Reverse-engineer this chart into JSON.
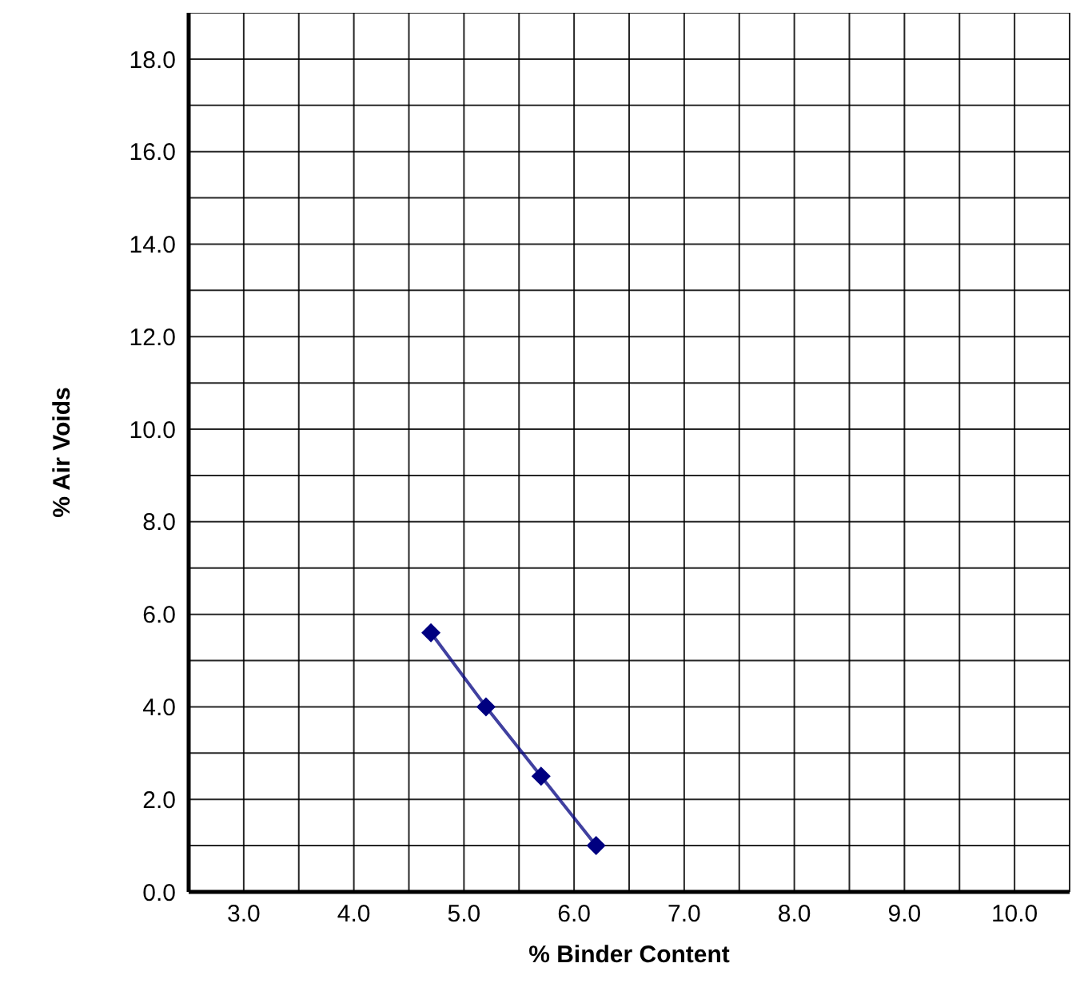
{
  "chart_data": {
    "type": "line",
    "xlabel": "% Binder Content",
    "ylabel": "% Air Voids",
    "x": [
      4.7,
      5.2,
      5.7,
      6.2
    ],
    "series": [
      {
        "color": "#000080",
        "values": [
          5.6,
          4.0,
          2.5,
          1.0
        ]
      }
    ],
    "xlim": [
      2.5,
      10.5
    ],
    "xticks": [
      {
        "value": 3.0,
        "label": "3.0"
      },
      {
        "value": 3.5,
        "label": null
      },
      {
        "value": 4.0,
        "label": "4.0"
      },
      {
        "value": 4.5,
        "label": null
      },
      {
        "value": 5.0,
        "label": "5.0"
      },
      {
        "value": 5.5,
        "label": null
      },
      {
        "value": 6.0,
        "label": "6.0"
      },
      {
        "value": 6.5,
        "label": null
      },
      {
        "value": 7.0,
        "label": "7.0"
      },
      {
        "value": 7.5,
        "label": null
      },
      {
        "value": 8.0,
        "label": "8.0"
      },
      {
        "value": 8.5,
        "label": null
      },
      {
        "value": 9.0,
        "label": "9.0"
      },
      {
        "value": 9.5,
        "label": null
      },
      {
        "value": 10.0,
        "label": "10.0"
      }
    ],
    "ylim": [
      0,
      19
    ],
    "yticks": [
      {
        "value": 0,
        "label": "0.0"
      },
      {
        "value": 1,
        "label": null
      },
      {
        "value": 2,
        "label": "2.0"
      },
      {
        "value": 3,
        "label": null
      },
      {
        "value": 4,
        "label": "4.0"
      },
      {
        "value": 5,
        "label": null
      },
      {
        "value": 6,
        "label": "6.0"
      },
      {
        "value": 7,
        "label": null
      },
      {
        "value": 8,
        "label": "8.0"
      },
      {
        "value": 9,
        "label": null
      },
      {
        "value": 10,
        "label": "10.0"
      },
      {
        "value": 11,
        "label": null
      },
      {
        "value": 12,
        "label": "12.0"
      },
      {
        "value": 13,
        "label": null
      },
      {
        "value": 14,
        "label": "14.0"
      },
      {
        "value": 15,
        "label": null
      },
      {
        "value": 16,
        "label": "16.0"
      },
      {
        "value": 17,
        "label": null
      },
      {
        "value": 18,
        "label": "18.0"
      },
      {
        "value": 19,
        "label": null
      }
    ],
    "grid": true,
    "marker": "diamond",
    "line_style": "solid"
  }
}
